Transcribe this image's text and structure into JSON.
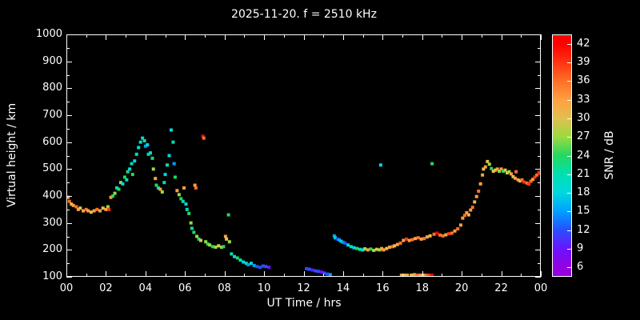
{
  "page": {
    "background": "#000000",
    "foreground": "#ffffff"
  },
  "chart_data": {
    "type": "scatter",
    "title": "2025-11-20. f = 2510 kHz",
    "xlabel": "UT Time / hrs",
    "ylabel": "Virtual height / km",
    "xlim": [
      0,
      24
    ],
    "ylim": [
      100,
      1000
    ],
    "grid": false,
    "x_tick_hours": [
      0,
      2,
      4,
      6,
      8,
      10,
      12,
      14,
      16,
      18,
      20,
      22,
      24
    ],
    "x_tick_labels": [
      "00",
      "02",
      "04",
      "06",
      "08",
      "10",
      "12",
      "14",
      "16",
      "18",
      "20",
      "22",
      "00"
    ],
    "y_ticks": [
      100,
      200,
      300,
      400,
      500,
      600,
      700,
      800,
      900,
      1000
    ],
    "colorbar": {
      "label": "SNR / dB",
      "ticks": [
        6,
        9,
        12,
        15,
        18,
        21,
        24,
        27,
        30,
        33,
        36,
        39,
        42
      ],
      "range": [
        4.5,
        43.5
      ]
    },
    "color_scale": [
      [
        6,
        "#9400e0"
      ],
      [
        9,
        "#6a14ff"
      ],
      [
        12,
        "#2850ff"
      ],
      [
        15,
        "#00a0ff"
      ],
      [
        18,
        "#00d8e0"
      ],
      [
        21,
        "#00e0b0"
      ],
      [
        24,
        "#22d860"
      ],
      [
        27,
        "#9ada40"
      ],
      [
        30,
        "#e0c050"
      ],
      [
        33,
        "#ffa040"
      ],
      [
        36,
        "#ff7028"
      ],
      [
        39,
        "#ff3510"
      ],
      [
        42,
        "#ff0000"
      ]
    ],
    "points": [
      [
        0.05,
        395,
        33
      ],
      [
        0.15,
        380,
        36
      ],
      [
        0.25,
        370,
        30
      ],
      [
        0.35,
        365,
        33
      ],
      [
        0.5,
        360,
        36
      ],
      [
        0.6,
        350,
        33
      ],
      [
        0.7,
        355,
        30
      ],
      [
        0.85,
        345,
        33
      ],
      [
        1.0,
        350,
        36
      ],
      [
        1.1,
        345,
        33
      ],
      [
        1.25,
        340,
        30
      ],
      [
        1.4,
        345,
        33
      ],
      [
        1.55,
        350,
        36
      ],
      [
        1.7,
        345,
        33
      ],
      [
        1.85,
        355,
        30
      ],
      [
        2.0,
        350,
        33
      ],
      [
        2.1,
        360,
        27
      ],
      [
        2.15,
        350,
        39
      ],
      [
        2.25,
        395,
        33
      ],
      [
        2.35,
        400,
        24
      ],
      [
        2.45,
        410,
        27
      ],
      [
        2.55,
        430,
        21
      ],
      [
        2.65,
        425,
        24
      ],
      [
        2.75,
        450,
        27
      ],
      [
        2.85,
        445,
        18
      ],
      [
        2.95,
        470,
        24
      ],
      [
        3.05,
        460,
        21
      ],
      [
        3.1,
        490,
        24
      ],
      [
        3.2,
        500,
        18
      ],
      [
        3.3,
        520,
        21
      ],
      [
        3.35,
        480,
        24
      ],
      [
        3.45,
        530,
        18
      ],
      [
        3.55,
        555,
        21
      ],
      [
        3.65,
        580,
        18
      ],
      [
        3.75,
        600,
        21
      ],
      [
        3.85,
        615,
        18
      ],
      [
        3.95,
        605,
        21
      ],
      [
        4.0,
        585,
        15
      ],
      [
        4.1,
        590,
        18
      ],
      [
        4.15,
        555,
        21
      ],
      [
        4.25,
        560,
        18
      ],
      [
        4.35,
        540,
        24
      ],
      [
        4.4,
        500,
        27
      ],
      [
        4.5,
        465,
        33
      ],
      [
        4.55,
        440,
        24
      ],
      [
        4.65,
        430,
        21
      ],
      [
        4.75,
        425,
        33
      ],
      [
        4.85,
        415,
        27
      ],
      [
        4.95,
        450,
        21
      ],
      [
        5.0,
        480,
        18
      ],
      [
        5.1,
        515,
        21
      ],
      [
        5.2,
        550,
        18
      ],
      [
        5.3,
        645,
        18
      ],
      [
        5.4,
        600,
        21
      ],
      [
        5.45,
        520,
        15
      ],
      [
        5.5,
        470,
        24
      ],
      [
        5.6,
        420,
        33
      ],
      [
        5.7,
        405,
        27
      ],
      [
        5.8,
        390,
        24
      ],
      [
        5.9,
        380,
        21
      ],
      [
        5.95,
        430,
        33
      ],
      [
        6.05,
        370,
        18
      ],
      [
        6.1,
        350,
        21
      ],
      [
        6.2,
        335,
        24
      ],
      [
        6.3,
        300,
        27
      ],
      [
        6.35,
        280,
        21
      ],
      [
        6.45,
        265,
        24
      ],
      [
        6.5,
        440,
        33
      ],
      [
        6.55,
        430,
        36
      ],
      [
        6.6,
        250,
        27
      ],
      [
        6.7,
        240,
        24
      ],
      [
        6.8,
        235,
        30
      ],
      [
        6.9,
        622,
        42
      ],
      [
        6.95,
        615,
        36
      ],
      [
        7.05,
        230,
        27
      ],
      [
        7.15,
        222,
        24
      ],
      [
        7.25,
        218,
        27
      ],
      [
        7.4,
        212,
        24
      ],
      [
        7.55,
        210,
        27
      ],
      [
        7.7,
        215,
        30
      ],
      [
        7.85,
        210,
        27
      ],
      [
        7.95,
        212,
        24
      ],
      [
        8.05,
        250,
        33
      ],
      [
        8.1,
        240,
        30
      ],
      [
        8.2,
        330,
        24
      ],
      [
        8.25,
        230,
        27
      ],
      [
        8.35,
        185,
        21
      ],
      [
        8.5,
        175,
        18
      ],
      [
        8.65,
        170,
        24
      ],
      [
        8.8,
        162,
        21
      ],
      [
        8.95,
        155,
        18
      ],
      [
        9.1,
        150,
        21
      ],
      [
        9.2,
        145,
        15
      ],
      [
        9.35,
        150,
        18
      ],
      [
        9.5,
        142,
        15
      ],
      [
        9.65,
        138,
        12
      ],
      [
        9.8,
        135,
        12
      ],
      [
        9.95,
        140,
        12
      ],
      [
        10.1,
        138,
        12
      ],
      [
        10.25,
        135,
        9
      ],
      [
        12.15,
        130,
        12
      ],
      [
        12.3,
        128,
        12
      ],
      [
        12.45,
        125,
        9
      ],
      [
        12.6,
        122,
        12
      ],
      [
        12.75,
        120,
        12
      ],
      [
        12.9,
        118,
        9
      ],
      [
        13.05,
        114,
        12
      ],
      [
        13.2,
        110,
        12
      ],
      [
        13.35,
        108,
        15
      ],
      [
        13.55,
        252,
        15
      ],
      [
        13.6,
        245,
        18
      ],
      [
        13.7,
        240,
        12
      ],
      [
        13.8,
        237,
        15
      ],
      [
        13.9,
        232,
        18
      ],
      [
        14.0,
        228,
        15
      ],
      [
        14.1,
        225,
        12
      ],
      [
        14.25,
        218,
        18
      ],
      [
        14.4,
        212,
        21
      ],
      [
        14.55,
        208,
        18
      ],
      [
        14.7,
        205,
        24
      ],
      [
        14.85,
        202,
        21
      ],
      [
        15.0,
        200,
        18
      ],
      [
        15.1,
        204,
        27
      ],
      [
        15.25,
        200,
        33
      ],
      [
        15.4,
        203,
        24
      ],
      [
        15.55,
        198,
        27
      ],
      [
        15.7,
        202,
        30
      ],
      [
        15.85,
        200,
        27
      ],
      [
        15.9,
        515,
        18
      ],
      [
        15.95,
        205,
        33
      ],
      [
        16.05,
        200,
        33
      ],
      [
        16.2,
        205,
        30
      ],
      [
        16.35,
        210,
        33
      ],
      [
        16.5,
        212,
        36
      ],
      [
        16.6,
        215,
        30
      ],
      [
        16.75,
        220,
        33
      ],
      [
        16.9,
        225,
        36
      ],
      [
        16.95,
        105,
        33
      ],
      [
        17.05,
        235,
        33
      ],
      [
        17.1,
        103,
        30
      ],
      [
        17.2,
        240,
        39
      ],
      [
        17.25,
        106,
        33
      ],
      [
        17.35,
        235,
        33
      ],
      [
        17.45,
        104,
        30
      ],
      [
        17.5,
        238,
        36
      ],
      [
        17.6,
        108,
        33
      ],
      [
        17.65,
        242,
        33
      ],
      [
        17.75,
        104,
        36
      ],
      [
        17.8,
        245,
        36
      ],
      [
        17.9,
        106,
        33
      ],
      [
        17.95,
        240,
        33
      ],
      [
        18.05,
        103,
        30
      ],
      [
        18.1,
        242,
        36
      ],
      [
        18.2,
        105,
        36
      ],
      [
        18.25,
        248,
        33
      ],
      [
        18.35,
        100,
        39
      ],
      [
        18.4,
        252,
        30
      ],
      [
        18.5,
        102,
        42
      ],
      [
        18.5,
        520,
        24
      ],
      [
        18.6,
        258,
        36
      ],
      [
        18.75,
        262,
        42
      ],
      [
        18.9,
        255,
        36
      ],
      [
        19.05,
        252,
        36
      ],
      [
        19.2,
        256,
        33
      ],
      [
        19.35,
        260,
        39
      ],
      [
        19.5,
        262,
        36
      ],
      [
        19.65,
        270,
        33
      ],
      [
        19.8,
        278,
        36
      ],
      [
        19.95,
        292,
        33
      ],
      [
        20.05,
        318,
        33
      ],
      [
        20.15,
        328,
        36
      ],
      [
        20.25,
        338,
        33
      ],
      [
        20.35,
        330,
        30
      ],
      [
        20.45,
        348,
        33
      ],
      [
        20.55,
        358,
        36
      ],
      [
        20.65,
        378,
        30
      ],
      [
        20.75,
        398,
        33
      ],
      [
        20.85,
        418,
        36
      ],
      [
        20.95,
        445,
        33
      ],
      [
        21.05,
        478,
        33
      ],
      [
        21.1,
        500,
        30
      ],
      [
        21.2,
        508,
        33
      ],
      [
        21.3,
        528,
        30
      ],
      [
        21.4,
        518,
        27
      ],
      [
        21.5,
        502,
        24
      ],
      [
        21.6,
        492,
        30
      ],
      [
        21.7,
        496,
        30
      ],
      [
        21.8,
        500,
        33
      ],
      [
        21.9,
        492,
        27
      ],
      [
        22.0,
        500,
        33
      ],
      [
        22.1,
        492,
        24
      ],
      [
        22.2,
        496,
        30
      ],
      [
        22.3,
        486,
        30
      ],
      [
        22.4,
        490,
        27
      ],
      [
        22.5,
        482,
        33
      ],
      [
        22.6,
        472,
        30
      ],
      [
        22.7,
        466,
        33
      ],
      [
        22.75,
        490,
        36
      ],
      [
        22.85,
        460,
        33
      ],
      [
        22.95,
        456,
        30
      ],
      [
        23.05,
        460,
        36
      ],
      [
        23.15,
        452,
        39
      ],
      [
        23.3,
        448,
        36
      ],
      [
        23.4,
        444,
        39
      ],
      [
        23.5,
        455,
        36
      ],
      [
        23.6,
        462,
        33
      ],
      [
        23.7,
        470,
        39
      ],
      [
        23.8,
        478,
        36
      ],
      [
        23.9,
        488,
        42
      ],
      [
        23.98,
        484,
        39
      ]
    ]
  }
}
